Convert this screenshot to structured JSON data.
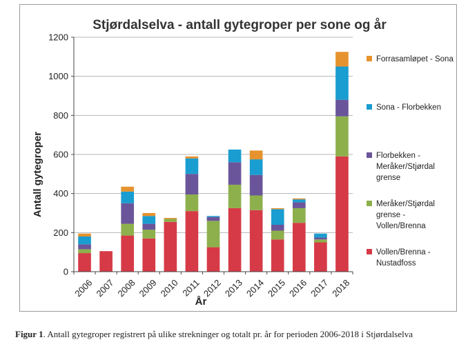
{
  "caption": {
    "label": "Figur 1",
    "text": ". Antall gytegroper registrert på ulike strekninger og totalt pr. år for perioden 2006-2018 i Stjørdalselva"
  },
  "chart_data": {
    "type": "bar",
    "stacked": true,
    "title": "Stjørdalselva - antall gytegroper per sone og år",
    "xlabel": "År",
    "ylabel": "Antall gytegroper",
    "ylim": [
      0,
      1200
    ],
    "yticks": [
      0,
      200,
      400,
      600,
      800,
      1000,
      1200
    ],
    "grid": true,
    "legend_position": "right",
    "categories": [
      "2006",
      "2007",
      "2008",
      "2009",
      "2010",
      "2011",
      "2012",
      "2013",
      "2014",
      "2015",
      "2016",
      "2017",
      "2018"
    ],
    "series": [
      {
        "name": "Vollen/Brenna - Nustadfoss",
        "legend_lines": [
          "Vollen/Brenna -",
          "Nustadfoss"
        ],
        "color": "#d63a47",
        "values": [
          95,
          105,
          185,
          170,
          255,
          310,
          125,
          325,
          315,
          165,
          250,
          150,
          590
        ]
      },
      {
        "name": "Meråker/Stjørdal grense - Vollen/Brenna",
        "legend_lines": [
          "Meråker/Stjørdal",
          "grense -",
          "Vollen/Brenna"
        ],
        "color": "#8db04c",
        "values": [
          20,
          0,
          60,
          45,
          15,
          85,
          135,
          120,
          75,
          45,
          75,
          15,
          205
        ]
      },
      {
        "name": "Florbekken - Meråker/Stjørdal grense",
        "legend_lines": [
          "Florbekken -",
          "Meråker/Stjørdal",
          "grense"
        ],
        "color": "#6a559a",
        "values": [
          25,
          0,
          105,
          30,
          0,
          105,
          20,
          115,
          105,
          30,
          30,
          10,
          85
        ]
      },
      {
        "name": "Sona - Florbekken",
        "legend_lines": [
          "Sona - Florbekken"
        ],
        "color": "#1a9dd0",
        "values": [
          40,
          0,
          60,
          40,
          0,
          80,
          5,
          65,
          80,
          80,
          15,
          20,
          170
        ]
      },
      {
        "name": "Forrasamløpet - Sona",
        "legend_lines": [
          "Forrasamløpet - Sona"
        ],
        "color": "#e6922e",
        "values": [
          15,
          0,
          25,
          15,
          5,
          10,
          0,
          0,
          45,
          5,
          5,
          0,
          75
        ]
      }
    ]
  }
}
